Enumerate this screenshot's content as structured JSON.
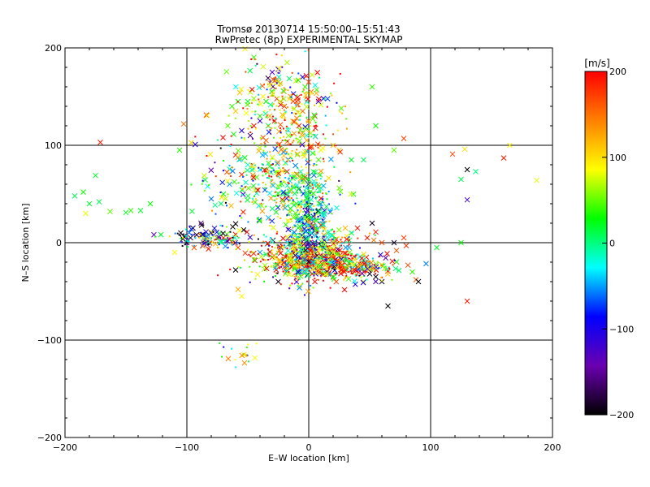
{
  "chart_data": {
    "type": "scatter",
    "title": "Tromsø 20130714 15:50:00–15:51:43",
    "subtitle": "RwPretec (8p) EXPERIMENTAL SKYMAP",
    "xlabel": "E–W location [km]",
    "ylabel": "N–S location [km]",
    "xlim": [
      -200,
      200
    ],
    "ylim": [
      -200,
      200
    ],
    "x_ticks": [
      -200,
      -100,
      0,
      100,
      200
    ],
    "y_ticks": [
      -200,
      -100,
      0,
      100,
      200
    ],
    "x_tick_labels": [
      "−200",
      "−100",
      "0",
      "100",
      "200"
    ],
    "y_tick_labels": [
      "−200",
      "−100",
      "0",
      "100",
      "200"
    ],
    "grid": true,
    "colorbar": {
      "title": "[m/s]",
      "range": [
        -200,
        200
      ],
      "ticks": [
        200,
        100,
        0,
        -100,
        -200
      ],
      "tick_labels": [
        "200",
        "100",
        "0",
        "−100",
        "−200"
      ],
      "colormap": [
        "#000000",
        "#6a00b0",
        "#0000ff",
        "#00ffff",
        "#00ff00",
        "#ffff00",
        "#ff8000",
        "#ff0000"
      ]
    },
    "markers": {
      "large": "x",
      "small": "dot"
    },
    "points": [
      [
        -171,
        103,
        190,
        "x"
      ],
      [
        -175,
        69,
        20,
        "x"
      ],
      [
        -185,
        52,
        30,
        "x"
      ],
      [
        -192,
        48,
        10,
        "x"
      ],
      [
        -180,
        40,
        20,
        "x"
      ],
      [
        -183,
        30,
        80,
        "x"
      ],
      [
        -163,
        32,
        50,
        "x"
      ],
      [
        -150,
        31,
        20,
        "x"
      ],
      [
        -146,
        33,
        40,
        "x"
      ],
      [
        -138,
        33,
        20,
        "x"
      ],
      [
        -130,
        40,
        30,
        "x"
      ],
      [
        -172,
        42,
        10,
        "x"
      ],
      [
        -110,
        -10,
        90,
        "x"
      ],
      [
        -105,
        10,
        -190,
        "x"
      ],
      [
        -95,
        15,
        -190,
        "x"
      ],
      [
        -92,
        8,
        -190,
        "x"
      ],
      [
        -88,
        18,
        -195,
        "x"
      ],
      [
        -97,
        5,
        -180,
        "x"
      ],
      [
        -100,
        0,
        -190,
        "x"
      ],
      [
        -85,
        3,
        -190,
        "x"
      ],
      [
        -80,
        10,
        -170,
        "x"
      ],
      [
        -75,
        5,
        -150,
        "x"
      ],
      [
        -70,
        5,
        190,
        "x"
      ],
      [
        -68,
        2,
        160,
        "x"
      ],
      [
        -65,
        3,
        190,
        "x"
      ],
      [
        -62,
        0,
        140,
        "x"
      ],
      [
        -58,
        -5,
        170,
        "x"
      ],
      [
        -60,
        -28,
        -200,
        "x"
      ],
      [
        -58,
        -48,
        120,
        "x"
      ],
      [
        -55,
        -55,
        90,
        "x"
      ],
      [
        -40,
        -10,
        -50,
        "x"
      ],
      [
        -35,
        -12,
        20,
        "x"
      ],
      [
        -30,
        -15,
        180,
        "x"
      ],
      [
        -25,
        -40,
        -190,
        "x"
      ],
      [
        -20,
        -25,
        190,
        "x"
      ],
      [
        -15,
        -18,
        180,
        "x"
      ],
      [
        -10,
        -20,
        -190,
        "x"
      ],
      [
        -5,
        -15,
        190,
        "x"
      ],
      [
        0,
        -10,
        -190,
        "x"
      ],
      [
        5,
        -20,
        170,
        "x"
      ],
      [
        10,
        -25,
        190,
        "x"
      ],
      [
        15,
        -30,
        -190,
        "x"
      ],
      [
        20,
        -25,
        150,
        "x"
      ],
      [
        25,
        -22,
        190,
        "x"
      ],
      [
        30,
        -28,
        -60,
        "x"
      ],
      [
        35,
        -18,
        180,
        "x"
      ],
      [
        40,
        -25,
        190,
        "x"
      ],
      [
        45,
        -30,
        170,
        "x"
      ],
      [
        50,
        -32,
        -190,
        "x"
      ],
      [
        55,
        -35,
        -195,
        "x"
      ],
      [
        60,
        -40,
        -195,
        "x"
      ],
      [
        65,
        -65,
        -200,
        "x"
      ],
      [
        85,
        -30,
        40,
        "x"
      ],
      [
        88,
        -38,
        160,
        "x"
      ],
      [
        90,
        -40,
        -200,
        "x"
      ],
      [
        72,
        -8,
        160,
        "x"
      ],
      [
        78,
        5,
        170,
        "x"
      ],
      [
        80,
        -3,
        180,
        "x"
      ],
      [
        70,
        0,
        -190,
        "x"
      ],
      [
        60,
        0,
        170,
        "x"
      ],
      [
        52,
        20,
        -190,
        "x"
      ],
      [
        55,
        11,
        190,
        "x"
      ],
      [
        48,
        5,
        190,
        "x"
      ],
      [
        40,
        15,
        190,
        "x"
      ],
      [
        35,
        10,
        20,
        "x"
      ],
      [
        30,
        15,
        120,
        "x"
      ],
      [
        10,
        18,
        190,
        "x"
      ],
      [
        0,
        25,
        -50,
        "x"
      ],
      [
        -15,
        35,
        30,
        "x"
      ],
      [
        -10,
        40,
        40,
        "x"
      ],
      [
        -25,
        50,
        60,
        "x"
      ],
      [
        -30,
        60,
        120,
        "x"
      ],
      [
        -40,
        75,
        -30,
        "x"
      ],
      [
        -50,
        80,
        -20,
        "x"
      ],
      [
        -55,
        70,
        180,
        "x"
      ],
      [
        -60,
        90,
        190,
        "x"
      ],
      [
        -65,
        60,
        -50,
        "x"
      ],
      [
        -70,
        50,
        30,
        "x"
      ],
      [
        -80,
        45,
        -60,
        "x"
      ],
      [
        -72,
        40,
        10,
        "x"
      ],
      [
        -45,
        120,
        190,
        "x"
      ],
      [
        -40,
        130,
        40,
        "x"
      ],
      [
        -35,
        145,
        30,
        "x"
      ],
      [
        -30,
        155,
        100,
        "x"
      ],
      [
        -25,
        165,
        20,
        "x"
      ],
      [
        -32,
        130,
        120,
        "x"
      ],
      [
        -28,
        125,
        190,
        "x"
      ],
      [
        -20,
        140,
        170,
        "x"
      ],
      [
        -15,
        150,
        140,
        "x"
      ],
      [
        -10,
        145,
        160,
        "x"
      ],
      [
        -5,
        135,
        150,
        "x"
      ],
      [
        -8,
        120,
        190,
        "x"
      ],
      [
        -12,
        112,
        130,
        "x"
      ],
      [
        -5,
        110,
        120,
        "x"
      ],
      [
        0,
        125,
        140,
        "x"
      ],
      [
        5,
        130,
        190,
        "x"
      ],
      [
        8,
        145,
        -120,
        "x"
      ],
      [
        12,
        148,
        -100,
        "x"
      ],
      [
        -5,
        170,
        -100,
        "x"
      ],
      [
        -3,
        160,
        40,
        "x"
      ],
      [
        0,
        165,
        170,
        "x"
      ],
      [
        2,
        155,
        150,
        "x"
      ],
      [
        -30,
        175,
        -130,
        "x"
      ],
      [
        -25,
        178,
        -110,
        "x"
      ],
      [
        -40,
        125,
        -110,
        "x"
      ],
      [
        -50,
        145,
        20,
        "x"
      ],
      [
        -45,
        148,
        60,
        "x"
      ],
      [
        -48,
        110,
        -160,
        "x"
      ],
      [
        -60,
        135,
        110,
        "x"
      ],
      [
        -63,
        140,
        40,
        "x"
      ],
      [
        -58,
        145,
        30,
        "x"
      ],
      [
        -55,
        115,
        -110,
        "x"
      ],
      [
        -35,
        105,
        150,
        "x"
      ],
      [
        -20,
        95,
        120,
        "x"
      ],
      [
        -15,
        88,
        90,
        "x"
      ],
      [
        10,
        95,
        80,
        "x"
      ],
      [
        20,
        100,
        120,
        "x"
      ],
      [
        25,
        95,
        110,
        "x"
      ],
      [
        35,
        85,
        20,
        "x"
      ],
      [
        45,
        85,
        10,
        "x"
      ],
      [
        55,
        120,
        30,
        "x"
      ],
      [
        52,
        160,
        40,
        "x"
      ],
      [
        70,
        95,
        50,
        "x"
      ],
      [
        78,
        107,
        170,
        "x"
      ],
      [
        118,
        91,
        170,
        "x"
      ],
      [
        128,
        96,
        100,
        "x"
      ],
      [
        130,
        75,
        -200,
        "x"
      ],
      [
        137,
        73,
        0,
        "x"
      ],
      [
        125,
        65,
        10,
        "x"
      ],
      [
        130,
        44,
        -120,
        "x"
      ],
      [
        165,
        100,
        90,
        "x"
      ],
      [
        160,
        87,
        190,
        "x"
      ],
      [
        187,
        64,
        80,
        "x"
      ],
      [
        105,
        -5,
        20,
        "x"
      ],
      [
        125,
        0,
        30,
        "x"
      ],
      [
        130,
        -60,
        190,
        "x"
      ]
    ]
  }
}
